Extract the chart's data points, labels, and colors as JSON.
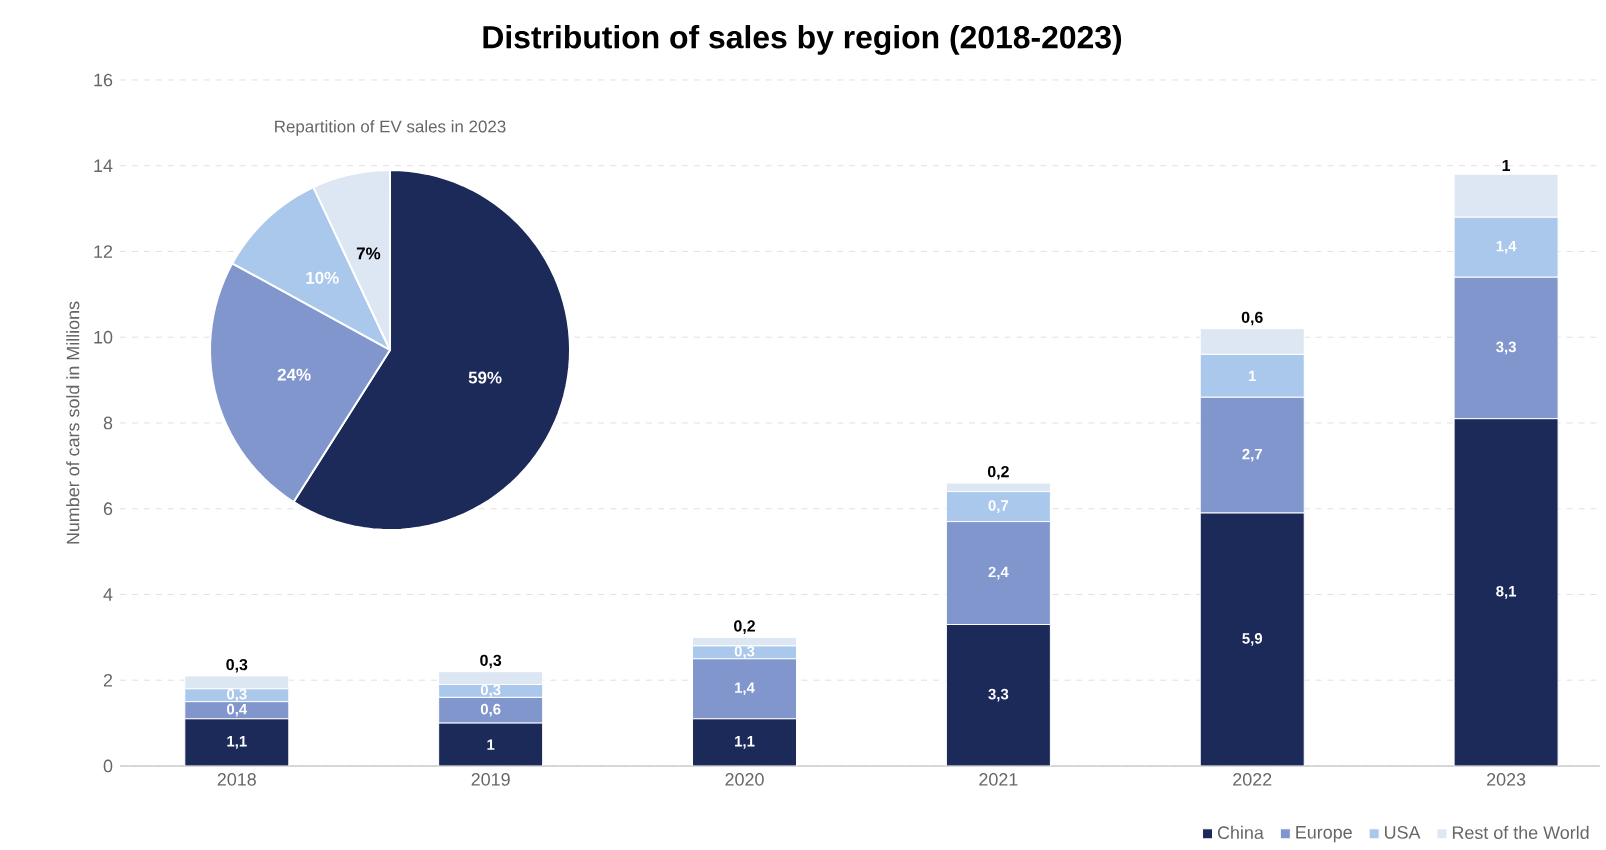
{
  "chart_data": [
    {
      "type": "bar",
      "title": "Distribution of sales by region (2018-2023)",
      "ylabel": "Number of cars sold in Millions",
      "categories": [
        "2018",
        "2019",
        "2020",
        "2021",
        "2022",
        "2023"
      ],
      "stacked": true,
      "series": [
        {
          "name": "China",
          "color": "#1c2a5a",
          "values": [
            1.1,
            1,
            1.1,
            3.3,
            5.9,
            8.1
          ],
          "value_labels": [
            "1,1",
            "1",
            "1,1",
            "3,3",
            "5,9",
            "8,1"
          ]
        },
        {
          "name": "Europe",
          "color": "#8096cc",
          "values": [
            0.4,
            0.6,
            1.4,
            2.4,
            2.7,
            3.3
          ],
          "value_labels": [
            "0,4",
            "0,6",
            "1,4",
            "2,4",
            "2,7",
            "3,3"
          ]
        },
        {
          "name": "USA",
          "color": "#a9c8ec",
          "values": [
            0.3,
            0.3,
            0.3,
            0.7,
            1,
            1.4
          ],
          "value_labels": [
            "0,3",
            "0,3",
            "0,3",
            "0,7",
            "1",
            "1,4"
          ]
        },
        {
          "name": "Rest of the World",
          "color": "#dde6f3",
          "values": [
            0.3,
            0.3,
            0.2,
            0.2,
            0.6,
            1
          ],
          "value_labels": [
            "0,3",
            "0,3",
            "0,2",
            "0,2",
            "0,6",
            "1"
          ]
        }
      ],
      "ylim": [
        0,
        16
      ],
      "yticks": [
        0,
        2,
        4,
        6,
        8,
        10,
        12,
        14,
        16
      ],
      "grid": "y",
      "legend": "bottom right"
    },
    {
      "type": "pie",
      "title": "Repartition of EV sales in 2023",
      "categories": [
        null,
        null,
        null,
        null
      ],
      "values": [
        59,
        24,
        10,
        7
      ],
      "colors": [
        "#1c2a5a",
        "#8096cc",
        "#a9c8ec",
        "#dde6f3"
      ],
      "value_labels": [
        "59%",
        "24%",
        "10%",
        "7%"
      ]
    }
  ]
}
